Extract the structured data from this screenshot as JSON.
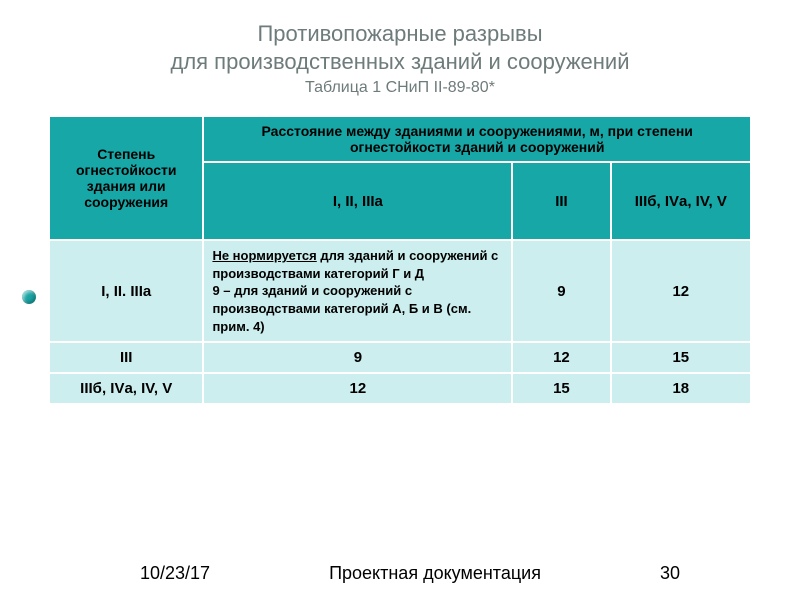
{
  "title": {
    "line1": "Противопожарные разрывы",
    "line2": "для производственных зданий и сооружений",
    "sub": "Таблица 1 СНиП II-89-80*"
  },
  "table": {
    "col_widths_pct": [
      22,
      44,
      14,
      20
    ],
    "header_bg": "#18a7a7",
    "body_bg": "#cceeee",
    "border_color": "#ffffff",
    "row_header": "Степень огнестойкости здания или сооружения",
    "span_header": "Расстояние между зданиями и сооружениями, м, при степени огнестойкости зданий и сооружений",
    "sub_headers": [
      "I, II, IIIа",
      "III",
      "IIIб, IVа, IV, V"
    ],
    "rows": [
      {
        "label": "I, II. IIIа",
        "note_underlined": "Не нормируется",
        "note_rest": " для зданий и сооружений с производствами категорий Г и Д",
        "note_part2": "9 – для зданий и сооружений с производствами категорий А, Б и В (см. прим. 4)",
        "vals": [
          "9",
          "12"
        ]
      },
      {
        "label": "III",
        "cells": [
          "9",
          "12",
          "15"
        ]
      },
      {
        "label": "IIIб, IVа, IV, V",
        "cells": [
          "12",
          "15",
          "18"
        ]
      }
    ]
  },
  "footer": {
    "date": "10/23/17",
    "label": "Проектная документация",
    "page": "30"
  }
}
